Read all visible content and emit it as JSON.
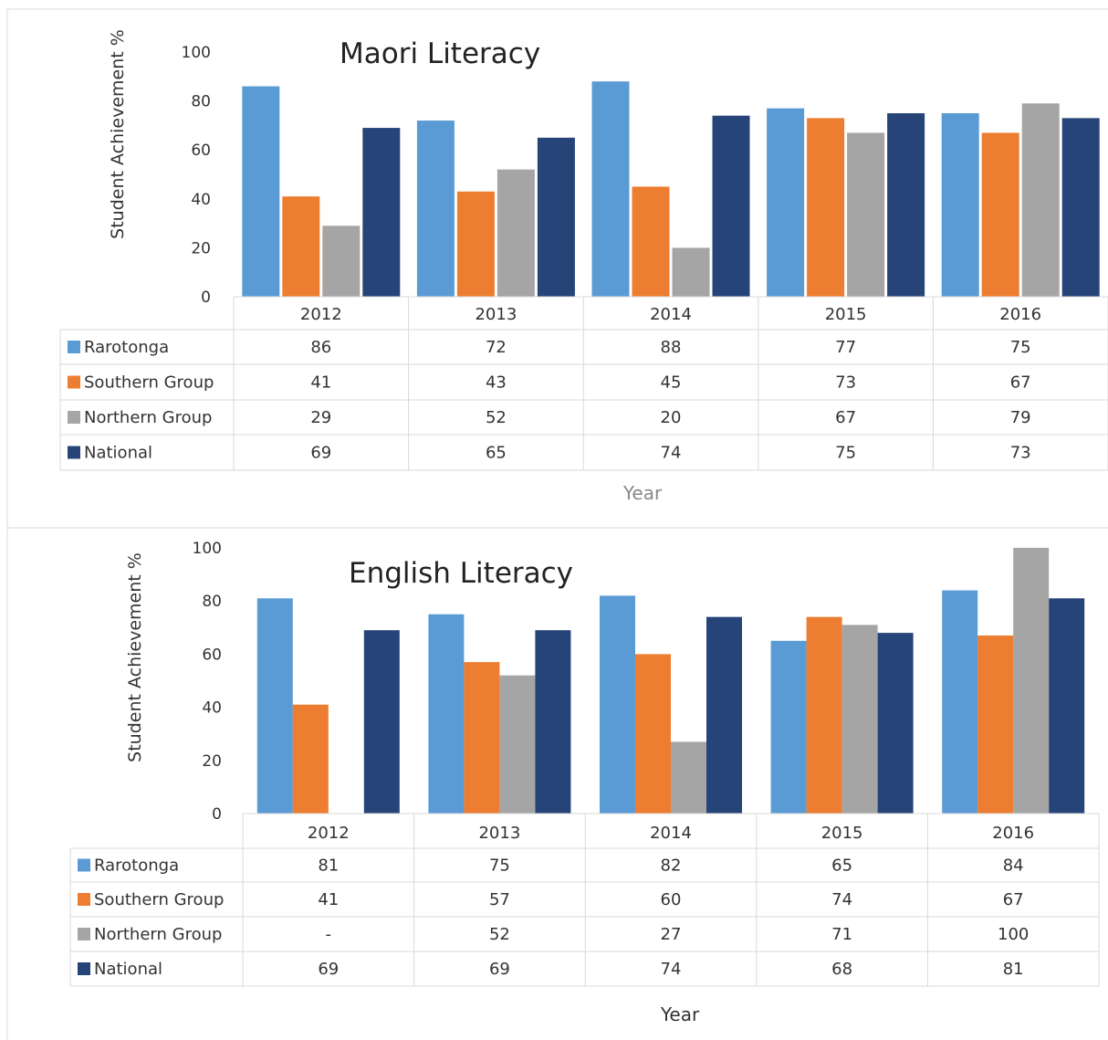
{
  "colors": {
    "Rarotonga": "#5b9bd5",
    "Southern Group": "#ed7d31",
    "Northern Group": "#a5a5a5",
    "National": "#264478",
    "border": "#d9d9d9"
  },
  "chart_data": [
    {
      "type": "bar",
      "title": "Maori Literacy",
      "xlabel": "Year",
      "ylabel": "Student Achievement %",
      "ylim": [
        0,
        100
      ],
      "yticks": [
        0,
        20,
        40,
        60,
        80,
        100
      ],
      "categories": [
        "2012",
        "2013",
        "2014",
        "2015",
        "2016"
      ],
      "legend_placement": "data-table",
      "grid": false,
      "series": [
        {
          "name": "Rarotonga",
          "values": [
            86,
            72,
            88,
            77,
            75
          ],
          "labels": [
            "86",
            "72",
            "88",
            "77",
            "75"
          ]
        },
        {
          "name": "Southern Group",
          "values": [
            41,
            43,
            45,
            73,
            67
          ],
          "labels": [
            "41",
            "43",
            "45",
            "73",
            "67"
          ]
        },
        {
          "name": "Northern Group",
          "values": [
            29,
            52,
            20,
            67,
            79
          ],
          "labels": [
            "29",
            "52",
            "20",
            "67",
            "79"
          ]
        },
        {
          "name": "National",
          "values": [
            69,
            65,
            74,
            75,
            73
          ],
          "labels": [
            "69",
            "65",
            "74",
            "75",
            "73"
          ]
        }
      ]
    },
    {
      "type": "bar",
      "title": "English Literacy",
      "xlabel": "Year",
      "ylabel": "Student Achievement %",
      "ylim": [
        0,
        100
      ],
      "yticks": [
        0,
        20,
        40,
        60,
        80,
        100
      ],
      "categories": [
        "2012",
        "2013",
        "2014",
        "2015",
        "2016"
      ],
      "legend_placement": "data-table",
      "grid": false,
      "series": [
        {
          "name": "Rarotonga",
          "values": [
            81,
            75,
            82,
            65,
            84
          ],
          "labels": [
            "81",
            "75",
            "82",
            "65",
            "84"
          ]
        },
        {
          "name": "Southern Group",
          "values": [
            41,
            57,
            60,
            74,
            67
          ],
          "labels": [
            "41",
            "57",
            "60",
            "74",
            "67"
          ]
        },
        {
          "name": "Northern Group",
          "values": [
            null,
            52,
            27,
            71,
            100
          ],
          "labels": [
            "-",
            "52",
            "27",
            "71",
            "100"
          ]
        },
        {
          "name": "National",
          "values": [
            69,
            69,
            74,
            68,
            81
          ],
          "labels": [
            "69",
            "69",
            "74",
            "68",
            "81"
          ]
        }
      ]
    }
  ]
}
